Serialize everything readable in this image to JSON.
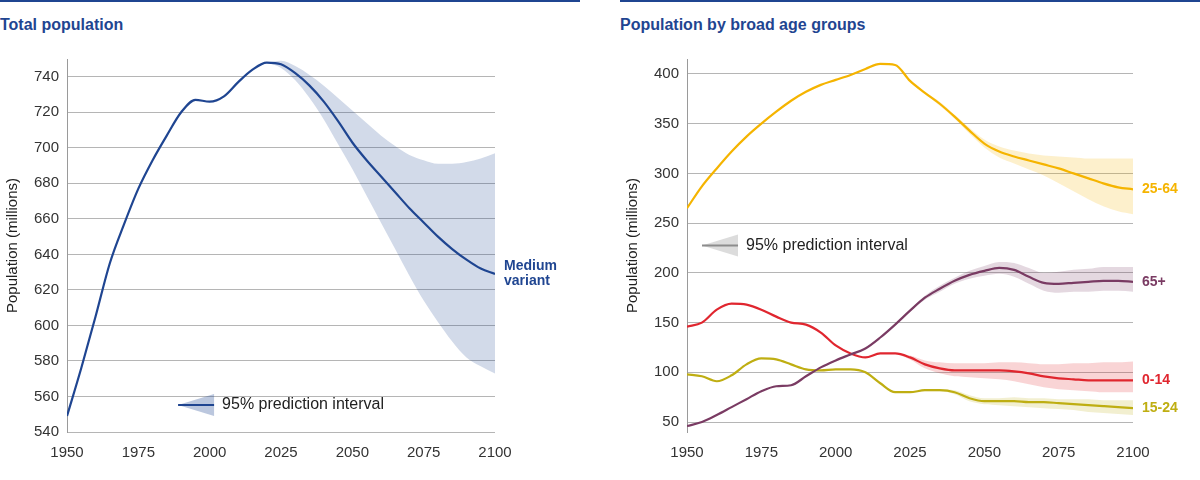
{
  "chart_data": [
    {
      "type": "line",
      "title": "Total population",
      "y_label": "Population (millions)",
      "x": [
        1950,
        1955,
        1960,
        1965,
        1970,
        1975,
        1980,
        1985,
        1990,
        1995,
        2000,
        2005,
        2010,
        2015,
        2020,
        2025,
        2030,
        2035,
        2040,
        2045,
        2050,
        2055,
        2060,
        2065,
        2070,
        2075,
        2080,
        2085,
        2090,
        2095,
        2100
      ],
      "xlim": [
        1950,
        2100
      ],
      "xticks": [
        1950,
        1975,
        2000,
        2025,
        2050,
        2075,
        2100
      ],
      "ylim": [
        540,
        750
      ],
      "yticks": [
        540,
        560,
        580,
        600,
        620,
        640,
        660,
        680,
        700,
        720,
        740
      ],
      "grid": "y",
      "legend": "lower center",
      "interval": {
        "name": "95% prediction interval",
        "color": "#1f4591"
      },
      "series": [
        {
          "name": "Medium variant",
          "color": "#1f4591",
          "values": [
            549,
            576,
            605,
            635,
            657,
            677,
            693,
            707,
            720,
            727,
            726,
            729,
            737,
            744,
            748,
            747,
            742,
            735,
            726,
            715,
            703,
            693,
            684,
            675,
            666,
            658,
            650,
            643,
            637,
            632,
            629
          ],
          "lower": [
            null,
            null,
            null,
            null,
            null,
            null,
            null,
            null,
            null,
            null,
            null,
            null,
            null,
            null,
            748,
            745,
            738,
            728,
            716,
            702,
            688,
            673,
            658,
            643,
            628,
            614,
            602,
            591,
            582,
            577,
            573
          ],
          "upper": [
            null,
            null,
            null,
            null,
            null,
            null,
            null,
            null,
            null,
            null,
            null,
            null,
            null,
            null,
            748,
            749,
            746,
            741,
            735,
            728,
            721,
            714,
            707,
            701,
            696,
            693,
            691,
            691,
            692,
            694,
            697
          ]
        }
      ]
    },
    {
      "type": "line",
      "title": "Population by broad age groups",
      "y_label": "Population (millions)",
      "x": [
        1950,
        1955,
        1960,
        1965,
        1970,
        1975,
        1980,
        1985,
        1990,
        1995,
        2000,
        2005,
        2010,
        2015,
        2020,
        2025,
        2030,
        2035,
        2040,
        2045,
        2050,
        2055,
        2060,
        2065,
        2070,
        2075,
        2080,
        2085,
        2090,
        2095,
        2100
      ],
      "xlim": [
        1950,
        2100
      ],
      "xticks": [
        1950,
        1975,
        2000,
        2025,
        2050,
        2075,
        2100
      ],
      "ylim": [
        40,
        415
      ],
      "yticks": [
        50,
        100,
        150,
        200,
        250,
        300,
        350,
        400
      ],
      "grid": "y",
      "legend": "center left",
      "interval": {
        "name": "95% prediction interval",
        "color": "#8c8c8c"
      },
      "series": [
        {
          "name": "25-64",
          "color": "#f5b400",
          "values": [
            265,
            287,
            305,
            322,
            337,
            350,
            362,
            373,
            382,
            389,
            394,
            399,
            405,
            410,
            409,
            393,
            381,
            370,
            357,
            343,
            330,
            322,
            317,
            313,
            309,
            305,
            300,
            295,
            290,
            286,
            284
          ],
          "lower": [
            null,
            null,
            null,
            null,
            null,
            null,
            null,
            null,
            null,
            null,
            null,
            null,
            null,
            null,
            409,
            392,
            380,
            368,
            355,
            340,
            326,
            316,
            310,
            304,
            298,
            290,
            282,
            274,
            267,
            262,
            259
          ],
          "upper": [
            null,
            null,
            null,
            null,
            null,
            null,
            null,
            null,
            null,
            null,
            null,
            null,
            null,
            null,
            409,
            394,
            382,
            372,
            359,
            346,
            334,
            327,
            323,
            320,
            318,
            317,
            316,
            315,
            315,
            315,
            315
          ]
        },
        {
          "name": "65+",
          "color": "#7a3b63",
          "values": [
            46,
            50,
            57,
            65,
            73,
            81,
            86,
            87,
            96,
            105,
            112,
            118,
            124,
            135,
            148,
            162,
            175,
            184,
            192,
            198,
            202,
            205,
            203,
            196,
            190,
            189,
            190,
            191,
            192,
            192,
            191
          ],
          "lower": [
            null,
            null,
            null,
            null,
            null,
            null,
            null,
            null,
            null,
            null,
            null,
            null,
            null,
            null,
            148,
            161,
            173,
            181,
            189,
            194,
            197,
            199,
            196,
            189,
            182,
            180,
            181,
            181,
            182,
            182,
            181
          ],
          "upper": [
            null,
            null,
            null,
            null,
            null,
            null,
            null,
            null,
            null,
            null,
            null,
            null,
            null,
            null,
            148,
            163,
            177,
            187,
            195,
            202,
            207,
            211,
            210,
            205,
            200,
            201,
            203,
            204,
            206,
            206,
            206
          ]
        },
        {
          "name": "0-14",
          "color": "#e0262f",
          "values": [
            146,
            150,
            163,
            169,
            168,
            163,
            156,
            150,
            148,
            140,
            127,
            119,
            115,
            119,
            119,
            115,
            108,
            104,
            102,
            102,
            102,
            102,
            101,
            99,
            96,
            94,
            93,
            92,
            92,
            92,
            92
          ],
          "lower": [
            null,
            null,
            null,
            null,
            null,
            null,
            null,
            null,
            null,
            null,
            null,
            null,
            null,
            null,
            119,
            113,
            104,
            99,
            96,
            95,
            94,
            93,
            91,
            88,
            85,
            83,
            82,
            81,
            80,
            80,
            80
          ],
          "upper": [
            null,
            null,
            null,
            null,
            null,
            null,
            null,
            null,
            null,
            null,
            null,
            null,
            null,
            null,
            119,
            117,
            112,
            110,
            109,
            109,
            109,
            110,
            110,
            109,
            108,
            108,
            109,
            109,
            110,
            110,
            111
          ]
        },
        {
          "name": "15-24",
          "color": "#bfae12",
          "values": [
            98,
            96,
            91,
            97,
            108,
            114,
            113,
            108,
            103,
            102,
            103,
            103,
            100,
            89,
            80,
            80,
            82,
            82,
            80,
            74,
            71,
            71,
            71,
            70,
            70,
            69,
            68,
            67,
            66,
            65,
            64
          ],
          "lower": [
            null,
            null,
            null,
            null,
            null,
            null,
            null,
            null,
            null,
            null,
            null,
            null,
            null,
            null,
            80,
            80,
            81,
            81,
            78,
            71,
            68,
            67,
            66,
            65,
            64,
            63,
            62,
            60,
            59,
            58,
            57
          ],
          "upper": [
            null,
            null,
            null,
            null,
            null,
            null,
            null,
            null,
            null,
            null,
            null,
            null,
            null,
            null,
            80,
            80,
            83,
            83,
            82,
            77,
            74,
            74,
            75,
            74,
            74,
            73,
            73,
            73,
            72,
            72,
            72
          ]
        }
      ]
    }
  ]
}
